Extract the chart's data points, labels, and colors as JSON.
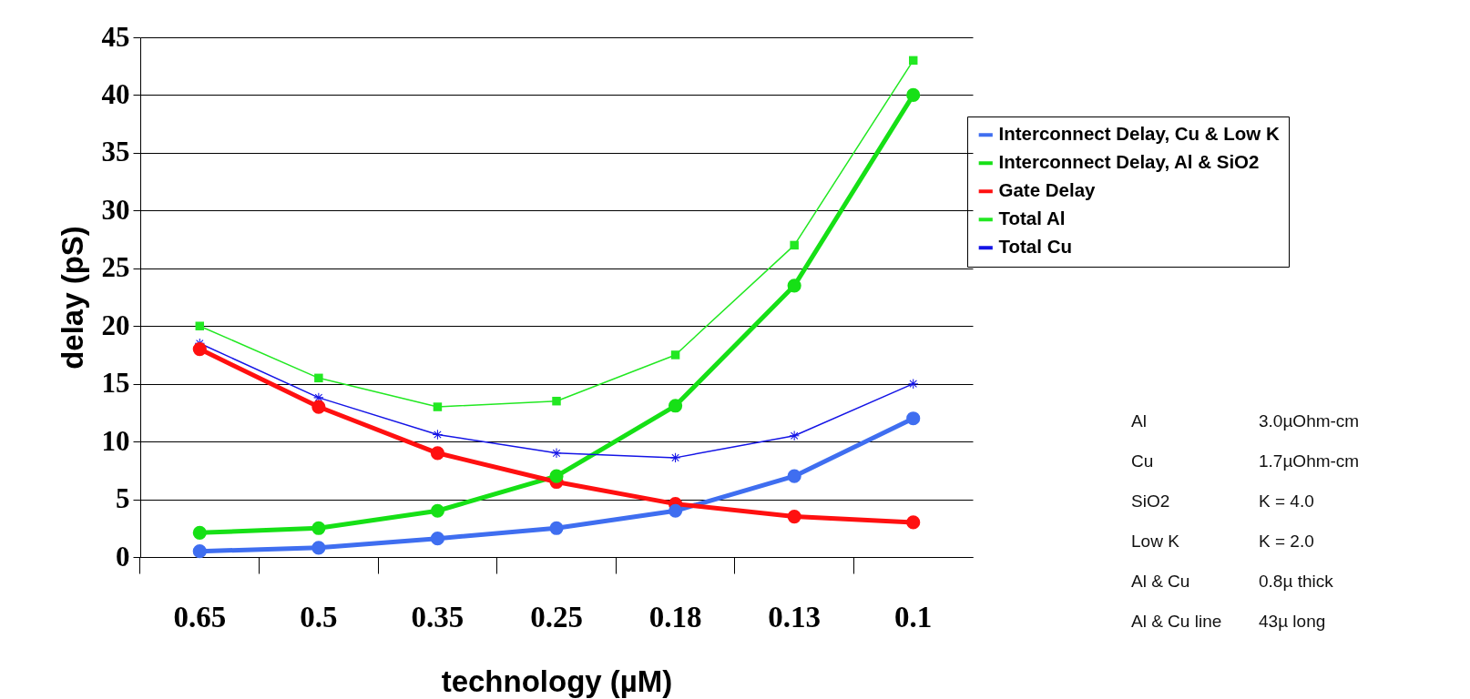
{
  "chart_data": {
    "type": "line",
    "xlabel": "technology (µM)",
    "ylabel": "delay (pS)",
    "categories": [
      "0.65",
      "0.5",
      "0.35",
      "0.25",
      "0.18",
      "0.13",
      "0.1"
    ],
    "ylim": [
      0,
      45
    ],
    "yticks": [
      0,
      5,
      10,
      15,
      20,
      25,
      30,
      35,
      40,
      45
    ],
    "grid": "y",
    "legend": "right",
    "series": [
      {
        "name": "Interconnect Delay, Cu & Low K",
        "color": "#3f6ef0",
        "marker": "circle",
        "values": [
          0.5,
          0.8,
          1.6,
          2.5,
          4,
          7,
          12
        ]
      },
      {
        "name": "Interconnect Delay, Al & SiO2",
        "color": "#16e016",
        "marker": "circle",
        "values": [
          2.1,
          2.5,
          4,
          7,
          13.1,
          23.5,
          40
        ]
      },
      {
        "name": "Gate Delay",
        "color": "#ff1010",
        "marker": "circle",
        "values": [
          18,
          13,
          9,
          6.5,
          4.6,
          3.5,
          3
        ]
      },
      {
        "name": "Total Al",
        "color": "#22e822",
        "marker": "square",
        "values": [
          20,
          15.5,
          13,
          13.5,
          17.5,
          27,
          43
        ]
      },
      {
        "name": "Total Cu",
        "color": "#1414e6",
        "marker": "star",
        "values": [
          18.5,
          13.8,
          10.6,
          9,
          8.6,
          10.5,
          15
        ]
      }
    ],
    "annotations": [
      "Al",
      "3.0µOhm-cm",
      "Cu",
      "1.7µOhm-cm",
      "SiO2",
      "K = 4.0",
      "Low K",
      "K = 2.0",
      "Al & Cu",
      "0.8µ thick",
      "Al & Cu line",
      "43µ long"
    ]
  }
}
